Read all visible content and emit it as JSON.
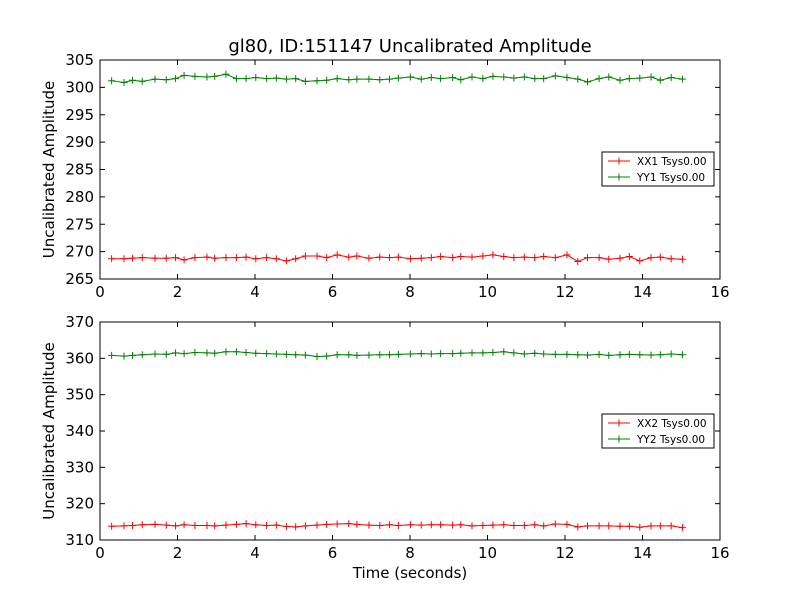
{
  "chart_data": [
    {
      "type": "line",
      "title": "gl80, ID:151147 Uncalibrated Amplitude",
      "xlabel": "",
      "ylabel": "Uncalibrated Amplitude",
      "xlim": [
        0,
        16
      ],
      "ylim": [
        265,
        305
      ],
      "xticks": [
        0,
        2,
        4,
        6,
        8,
        10,
        12,
        14,
        16
      ],
      "yticks": [
        265,
        270,
        275,
        280,
        285,
        290,
        295,
        300,
        305
      ],
      "legend_position": "center-right",
      "x": [
        0.3,
        0.62,
        0.84,
        1.09,
        1.42,
        1.71,
        1.95,
        2.17,
        2.45,
        2.76,
        2.96,
        3.25,
        3.52,
        3.77,
        4.02,
        4.3,
        4.55,
        4.81,
        5.05,
        5.3,
        5.6,
        5.85,
        6.12,
        6.42,
        6.63,
        6.94,
        7.22,
        7.47,
        7.7,
        8.01,
        8.29,
        8.55,
        8.79,
        9.1,
        9.31,
        9.6,
        9.88,
        10.14,
        10.42,
        10.68,
        10.95,
        11.22,
        11.45,
        11.75,
        12.05,
        12.33,
        12.58,
        12.88,
        13.13,
        13.42,
        13.66,
        13.93,
        14.22,
        14.46,
        14.74,
        15.03
      ],
      "series": [
        {
          "name": "XX1 Tsys0.00",
          "color": "#ff0000",
          "values": [
            268.7,
            268.7,
            268.8,
            268.9,
            268.8,
            268.8,
            268.9,
            268.5,
            268.9,
            269.0,
            268.8,
            268.9,
            268.9,
            269.0,
            268.7,
            268.9,
            268.7,
            268.3,
            268.7,
            269.2,
            269.2,
            268.9,
            269.4,
            269.0,
            269.2,
            268.8,
            269.0,
            268.9,
            269.0,
            268.7,
            268.8,
            268.9,
            269.1,
            268.9,
            269.1,
            269.0,
            269.2,
            269.4,
            269.1,
            268.9,
            269.0,
            268.9,
            269.1,
            268.9,
            269.4,
            268.2,
            268.9,
            268.9,
            268.6,
            268.8,
            269.1,
            268.3,
            268.9,
            269.0,
            268.7,
            268.6
          ]
        },
        {
          "name": "YY1 Tsys0.00",
          "color": "#008000",
          "values": [
            301.2,
            300.9,
            301.3,
            301.1,
            301.5,
            301.4,
            301.6,
            302.2,
            302.0,
            301.9,
            302.0,
            302.4,
            301.6,
            301.6,
            301.8,
            301.6,
            301.7,
            301.5,
            301.6,
            301.1,
            301.2,
            301.3,
            301.6,
            301.4,
            301.5,
            301.5,
            301.4,
            301.5,
            301.7,
            301.9,
            301.5,
            301.8,
            301.6,
            301.8,
            301.4,
            301.9,
            301.6,
            302.0,
            301.9,
            301.7,
            301.9,
            301.6,
            301.6,
            302.1,
            301.8,
            301.5,
            301.0,
            301.6,
            301.9,
            301.3,
            301.6,
            301.7,
            301.9,
            301.3,
            301.8,
            301.5
          ]
        }
      ]
    },
    {
      "type": "line",
      "title": "",
      "xlabel": "Time (seconds)",
      "ylabel": "Uncalibrated Amplitude",
      "xlim": [
        0,
        16
      ],
      "ylim": [
        310,
        370
      ],
      "xticks": [
        0,
        2,
        4,
        6,
        8,
        10,
        12,
        14,
        16
      ],
      "yticks": [
        310,
        320,
        330,
        340,
        350,
        360,
        370
      ],
      "legend_position": "center-right",
      "x": [
        0.3,
        0.62,
        0.84,
        1.09,
        1.42,
        1.71,
        1.95,
        2.17,
        2.45,
        2.76,
        2.96,
        3.25,
        3.52,
        3.77,
        4.02,
        4.3,
        4.55,
        4.81,
        5.05,
        5.3,
        5.6,
        5.85,
        6.12,
        6.42,
        6.63,
        6.94,
        7.22,
        7.47,
        7.7,
        8.01,
        8.29,
        8.55,
        8.79,
        9.1,
        9.31,
        9.6,
        9.88,
        10.14,
        10.42,
        10.68,
        10.95,
        11.22,
        11.45,
        11.75,
        12.05,
        12.33,
        12.58,
        12.88,
        13.13,
        13.42,
        13.66,
        13.93,
        14.22,
        14.46,
        14.74,
        15.03
      ],
      "series": [
        {
          "name": "XX2 Tsys0.00",
          "color": "#ff0000",
          "values": [
            313.8,
            313.9,
            314.0,
            314.2,
            314.3,
            314.1,
            313.9,
            314.2,
            314.0,
            314.0,
            313.9,
            314.1,
            314.3,
            314.5,
            314.2,
            314.0,
            314.1,
            313.7,
            313.6,
            313.9,
            314.1,
            314.3,
            314.4,
            314.5,
            314.3,
            314.1,
            314.0,
            314.2,
            314.0,
            314.2,
            314.1,
            314.2,
            314.2,
            314.1,
            314.2,
            313.9,
            314.0,
            314.1,
            314.2,
            314.0,
            314.0,
            314.2,
            313.9,
            314.4,
            314.3,
            313.6,
            313.9,
            313.9,
            313.9,
            313.8,
            313.8,
            313.5,
            313.9,
            313.9,
            313.9,
            313.4
          ]
        },
        {
          "name": "YY2 Tsys0.00",
          "color": "#008000",
          "values": [
            360.8,
            360.6,
            360.8,
            361.0,
            361.2,
            361.1,
            361.5,
            361.3,
            361.6,
            361.5,
            361.4,
            361.8,
            361.8,
            361.6,
            361.4,
            361.3,
            361.2,
            361.1,
            361.0,
            360.9,
            360.5,
            360.6,
            361.0,
            361.0,
            360.8,
            360.9,
            361.0,
            361.0,
            361.1,
            361.2,
            361.3,
            361.2,
            361.3,
            361.3,
            361.4,
            361.5,
            361.5,
            361.6,
            361.8,
            361.5,
            361.2,
            361.4,
            361.2,
            361.1,
            361.1,
            361.0,
            360.9,
            361.1,
            360.8,
            361.0,
            361.1,
            361.0,
            360.9,
            361.0,
            361.2,
            361.0
          ]
        }
      ]
    }
  ]
}
